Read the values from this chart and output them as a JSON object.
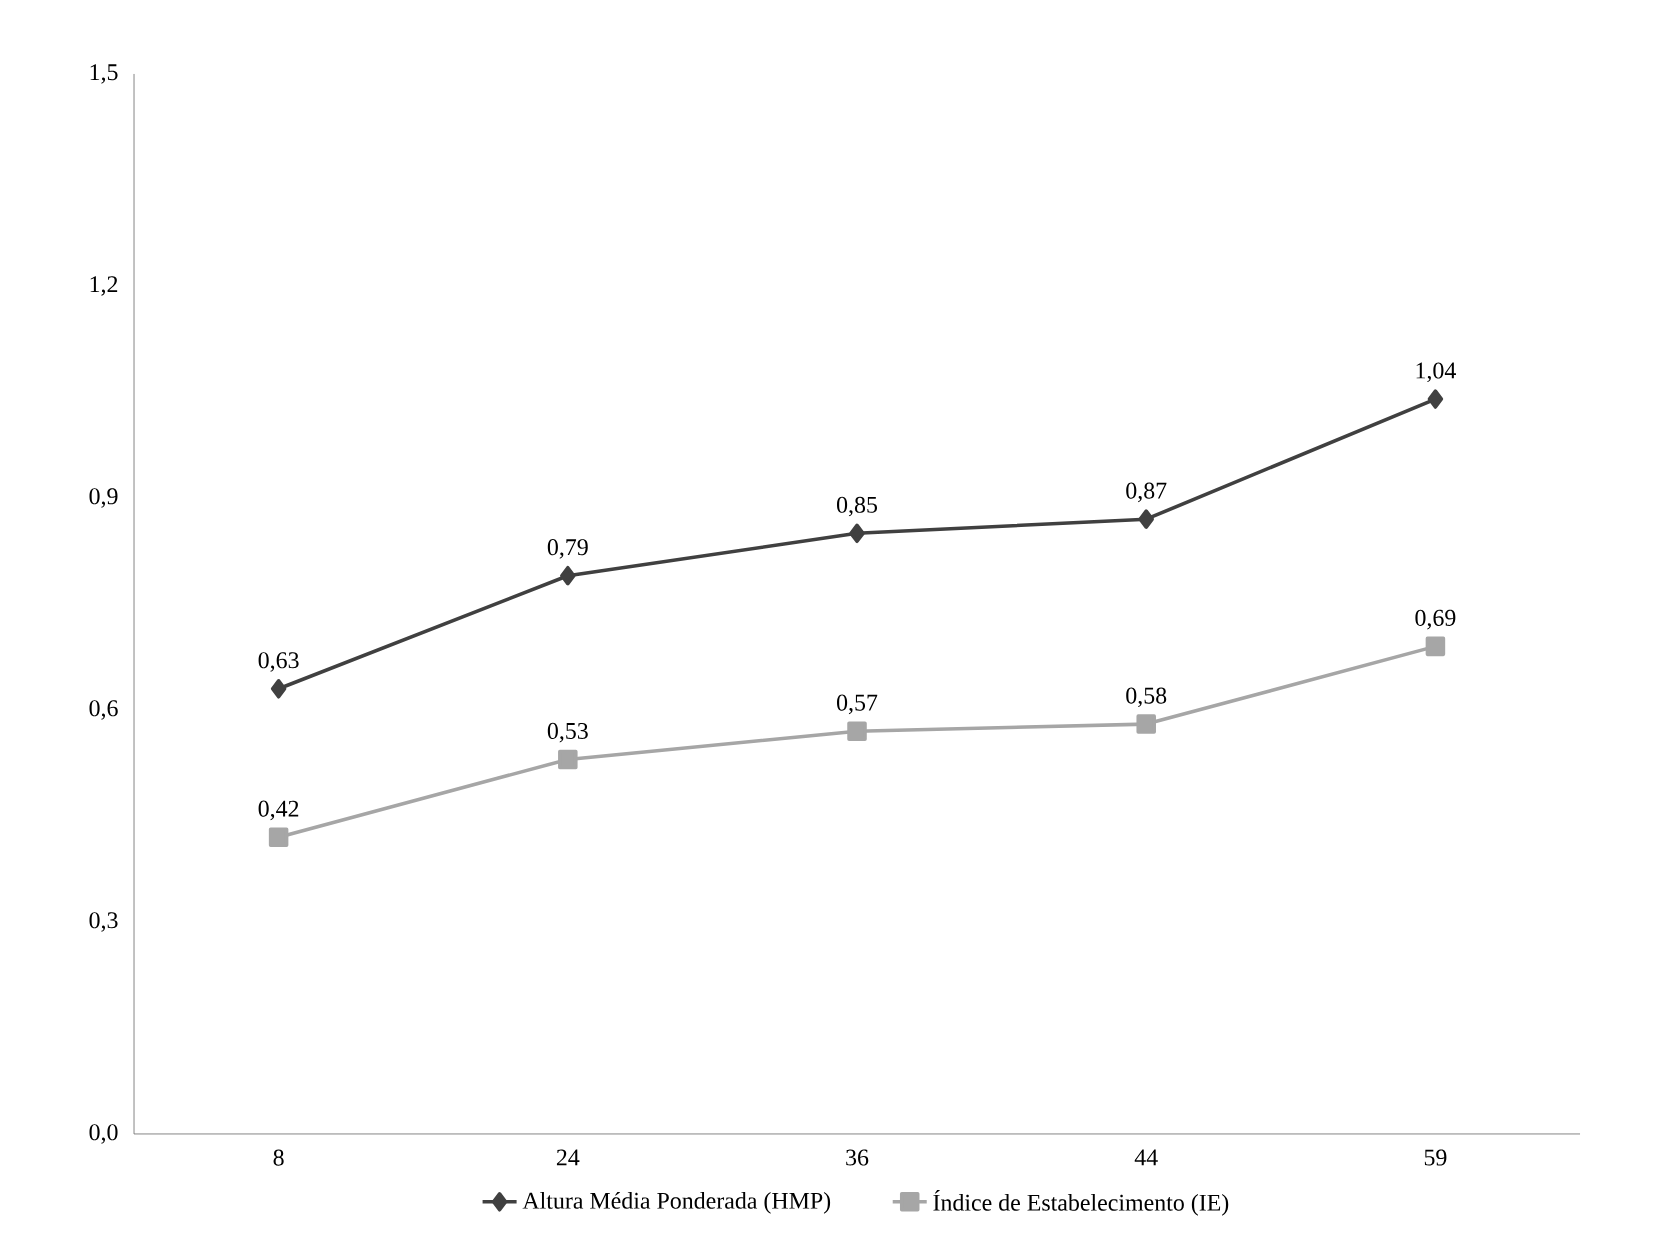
{
  "chart_data": {
    "type": "line",
    "categories": [
      "8",
      "24",
      "36",
      "44",
      "59"
    ],
    "series": [
      {
        "name": "Altura Média Ponderada (HMP)",
        "color": "#404040",
        "marker": "diamond",
        "values": [
          0.63,
          0.79,
          0.85,
          0.87,
          1.04
        ],
        "value_labels": [
          "0,63",
          "0,79",
          "0,85",
          "0,87",
          "1,04"
        ]
      },
      {
        "name": "Índice de Estabelecimento (IE)",
        "color": "#a6a6a6",
        "marker": "square",
        "values": [
          0.42,
          0.53,
          0.57,
          0.58,
          0.69
        ],
        "value_labels": [
          "0,42",
          "0,53",
          "0,57",
          "0,58",
          "0,69"
        ]
      }
    ],
    "ylim": [
      0,
      1.5
    ],
    "yticks": [
      {
        "value": 0,
        "label": "0,0"
      },
      {
        "value": 0.3,
        "label": "0,3"
      },
      {
        "value": 0.6,
        "label": "0,6"
      },
      {
        "value": 0.9,
        "label": "0,9"
      },
      {
        "value": 1.2,
        "label": "1,2"
      },
      {
        "value": 1.5,
        "label": "1,5"
      }
    ],
    "grid": false,
    "legend": "bottom",
    "line_style": "solid"
  }
}
